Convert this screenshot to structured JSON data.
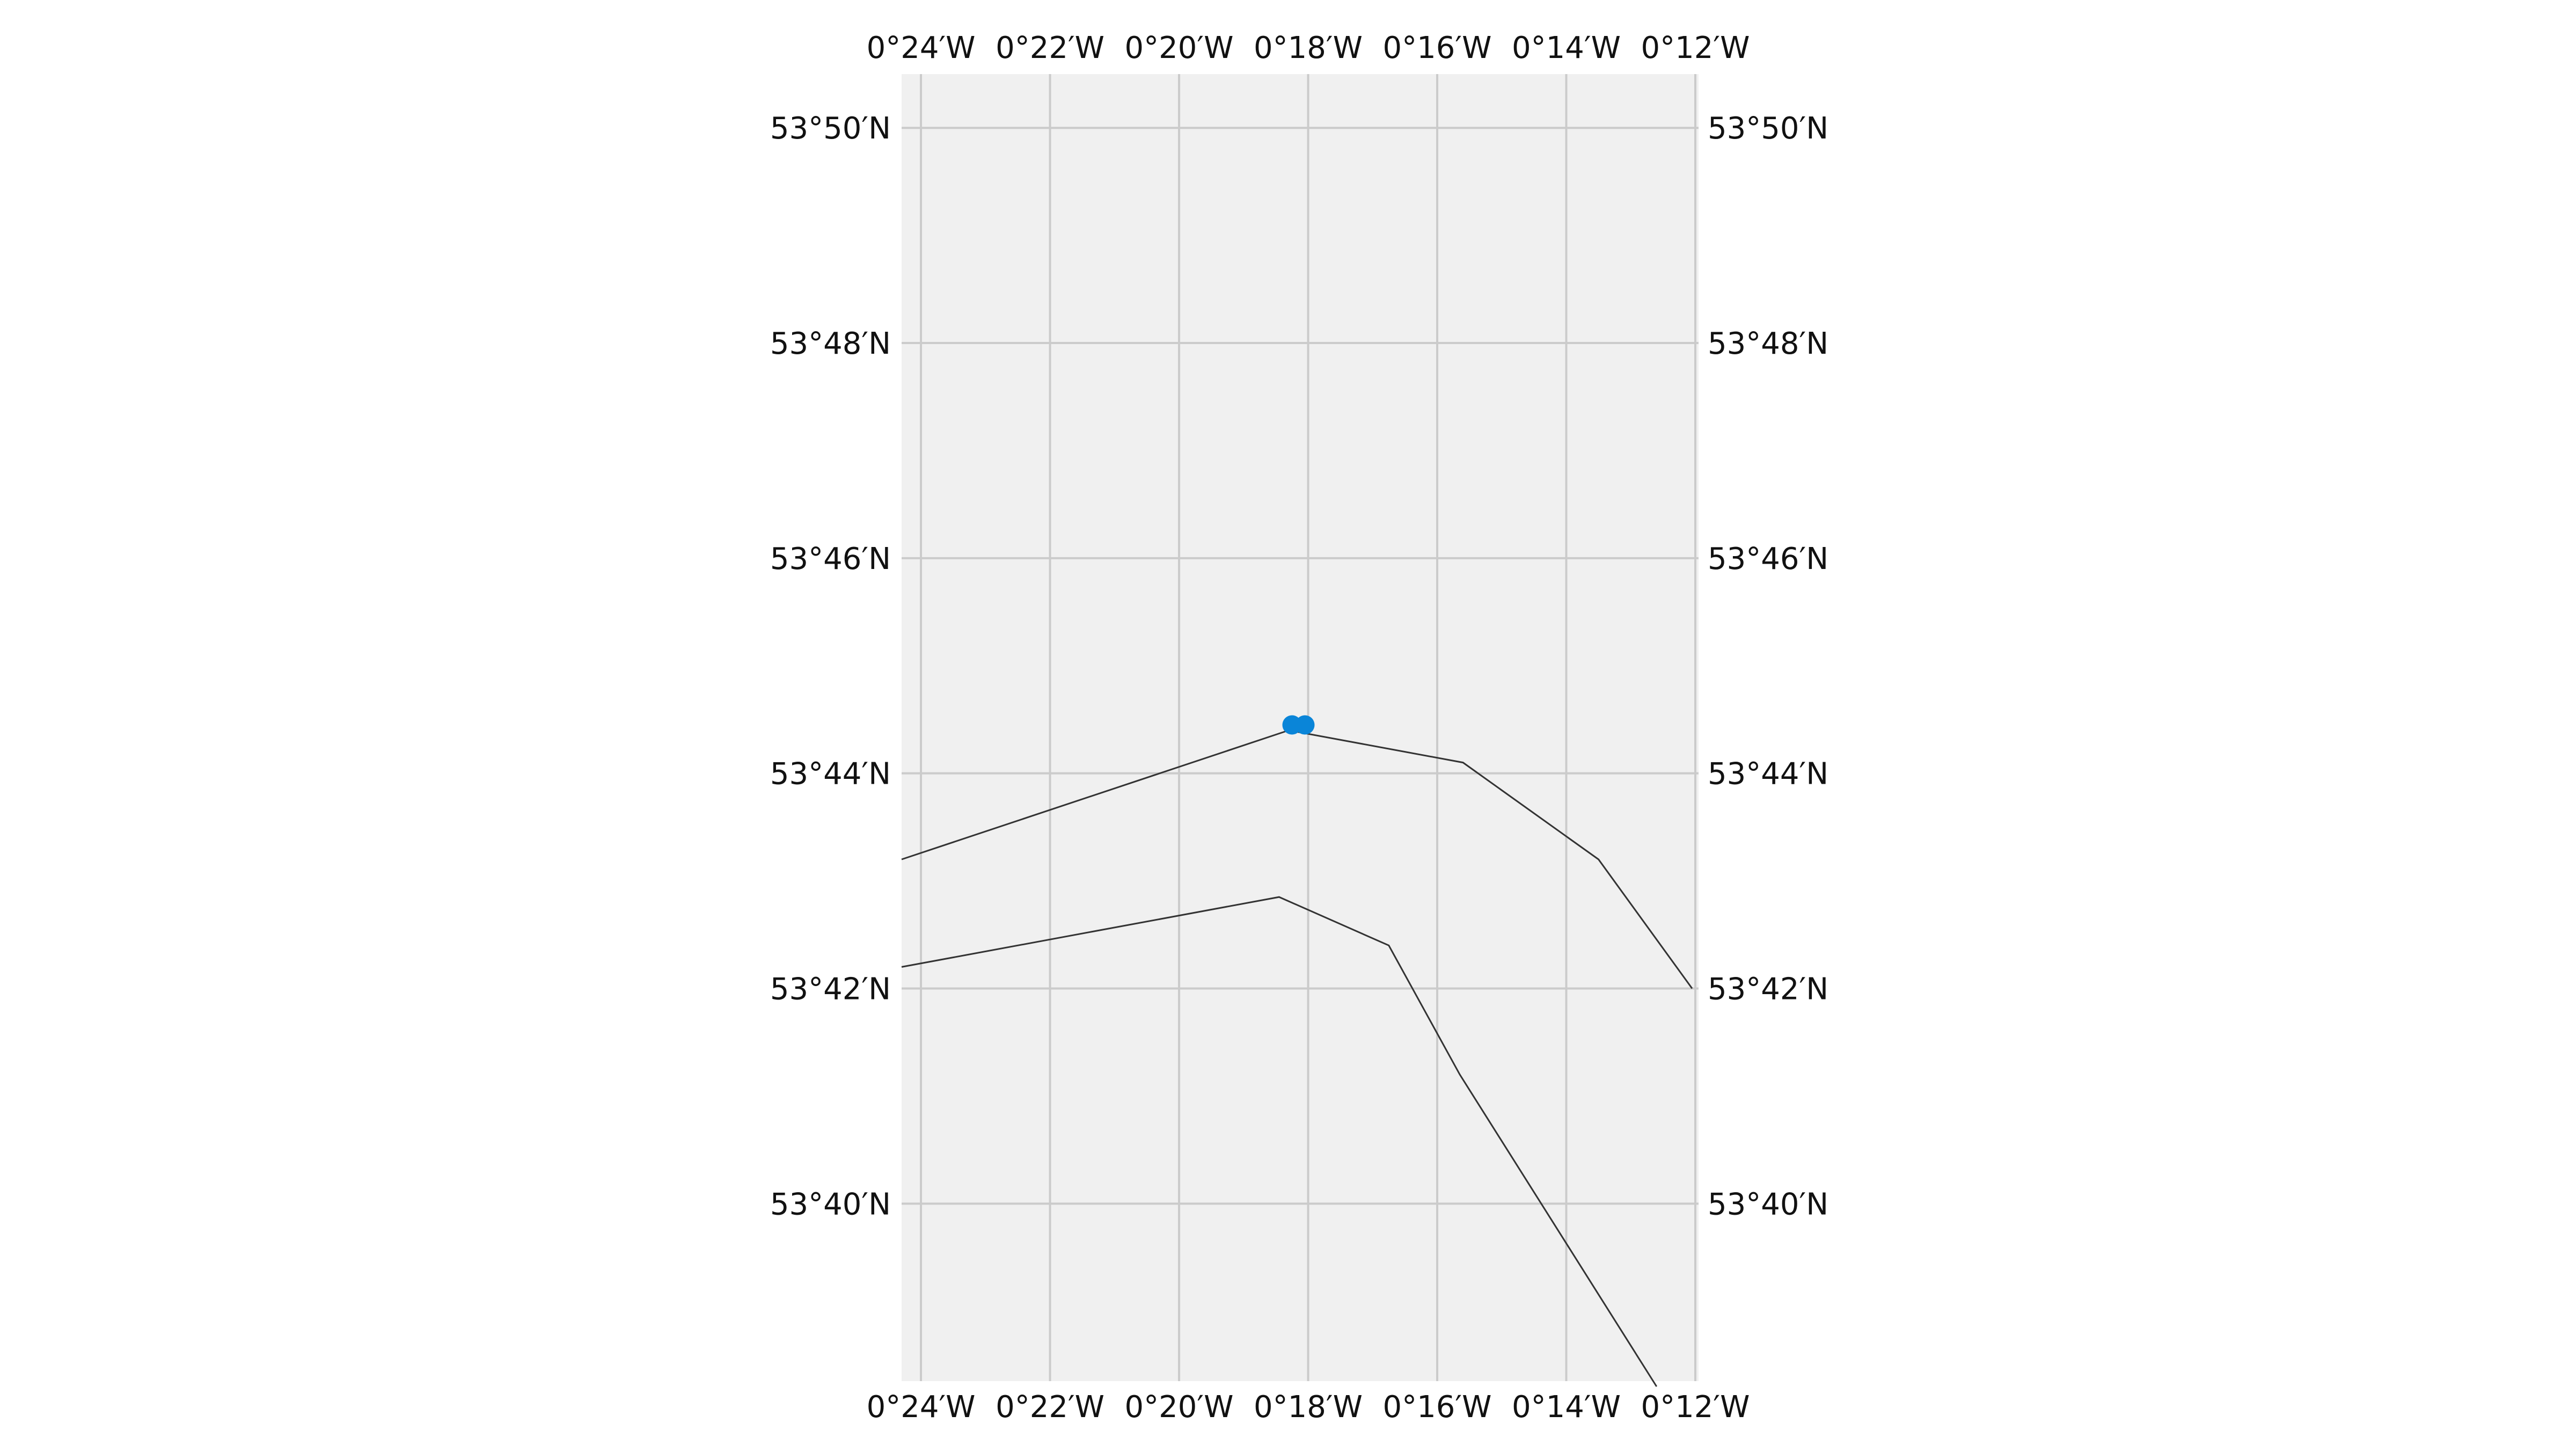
{
  "map": {
    "projection": "PlateCarree",
    "extent": {
      "lon_min": -24.3,
      "lon_max": -11.95,
      "lat_min": 38.35,
      "lat_max": 50.5
    },
    "x_ticks": [
      {
        "value": -24,
        "label": "0°24′W"
      },
      {
        "value": -22,
        "label": "0°22′W"
      },
      {
        "value": -20,
        "label": "0°20′W"
      },
      {
        "value": -18,
        "label": "0°18′W"
      },
      {
        "value": -16,
        "label": "0°16′W"
      },
      {
        "value": -14,
        "label": "0°14′W"
      },
      {
        "value": -12,
        "label": "0°12′W"
      }
    ],
    "y_ticks": [
      {
        "value": 50,
        "label": "53°50′N"
      },
      {
        "value": 48,
        "label": "53°48′N"
      },
      {
        "value": 46,
        "label": "53°46′N"
      },
      {
        "value": 44,
        "label": "53°44′N"
      },
      {
        "value": 42,
        "label": "53°42′N"
      },
      {
        "value": 40,
        "label": "53°40′N"
      }
    ],
    "tick_units": "arcminutes (0°mm′W, 53°mm′N)",
    "gridlines": true,
    "colors": {
      "background": "#f0f0f0",
      "gridline": "#cbcbcb",
      "boundary": "#333333",
      "point": "#0a85d8"
    },
    "boundaries": [
      {
        "name": "upper",
        "points": [
          [
            -24.3,
            43.2
          ],
          [
            -18.3,
            44.4
          ],
          [
            -15.6,
            44.1
          ],
          [
            -13.5,
            43.2
          ],
          [
            -12.05,
            42.0
          ]
        ]
      },
      {
        "name": "lower",
        "points": [
          [
            -24.3,
            42.2
          ],
          [
            -18.45,
            42.85
          ],
          [
            -16.75,
            42.4
          ],
          [
            -15.65,
            41.2
          ],
          [
            -12.6,
            38.3
          ]
        ]
      }
    ],
    "points": [
      {
        "lon": -18.25,
        "lat": 44.45
      },
      {
        "lon": -18.05,
        "lat": 44.45
      }
    ]
  }
}
